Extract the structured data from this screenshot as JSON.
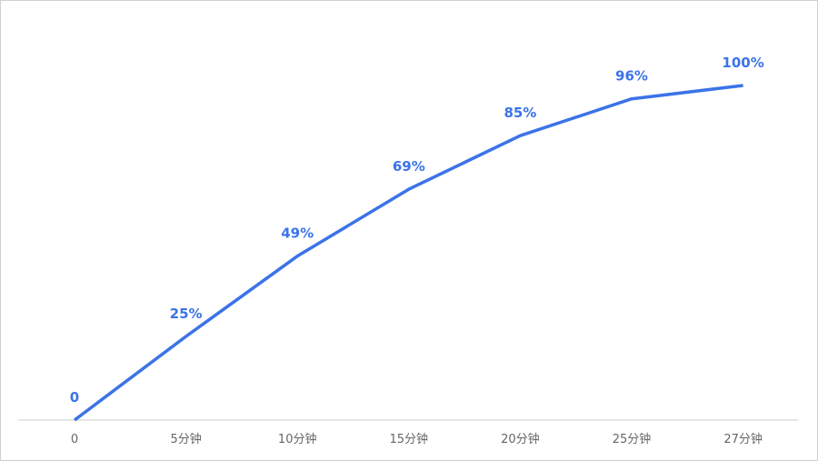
{
  "chart_data": {
    "type": "line",
    "categories": [
      "0",
      "5分钟",
      "10分钟",
      "15分钟",
      "20分钟",
      "25分钟",
      "27分钟"
    ],
    "values": [
      0,
      25,
      49,
      69,
      85,
      96,
      100
    ],
    "value_labels": [
      "0",
      "25%",
      "49%",
      "69%",
      "85%",
      "96%",
      "100%"
    ],
    "color": "#3b73e8"
  }
}
